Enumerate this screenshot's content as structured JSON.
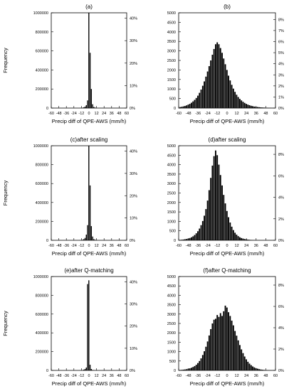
{
  "chart_data": [
    {
      "type": "bar",
      "title": "(a)",
      "xlabel": "Precip diff of QPE-AWS (mm/h)",
      "ylabel": "Frequency",
      "xlim": [
        -60,
        60
      ],
      "ylim": [
        0,
        1000000
      ],
      "xticks": [
        -60,
        -48,
        -36,
        -24,
        -12,
        0,
        12,
        24,
        36,
        48,
        60
      ],
      "yticks": [
        0,
        200000,
        400000,
        600000,
        800000,
        1000000
      ],
      "y2ticks": [
        "0%",
        "10%",
        "20%",
        "30%",
        "40%"
      ],
      "y2max": 0.424,
      "bin_width": 2,
      "x": [
        -14,
        -12,
        -10,
        -8,
        -6,
        -4,
        -2,
        0,
        2,
        4,
        6,
        8,
        10,
        12,
        14
      ],
      "values": [
        1000,
        2000,
        4000,
        8000,
        15000,
        30000,
        80000,
        1000000,
        580000,
        200000,
        40000,
        12000,
        5000,
        2000,
        1000
      ]
    },
    {
      "type": "bar",
      "title": "(b)",
      "xlabel": "Precip diff of QPE-AWS (mm/h)",
      "ylabel": "",
      "xlim": [
        -60,
        60
      ],
      "ylim": [
        0,
        5000
      ],
      "xticks": [
        -60,
        -48,
        -36,
        -24,
        -12,
        0,
        12,
        24,
        36,
        48,
        60
      ],
      "yticks": [
        0,
        500,
        1000,
        1500,
        2000,
        2500,
        3000,
        3500,
        4000,
        4500,
        5000
      ],
      "y2ticks": [
        "0%",
        "1%",
        "2%",
        "3%",
        "4%",
        "5%",
        "6%",
        "7%",
        "8%"
      ],
      "y2max": 0.086,
      "bin_width": 2,
      "x": [
        -58,
        -56,
        -54,
        -52,
        -50,
        -48,
        -46,
        -44,
        -42,
        -40,
        -38,
        -36,
        -34,
        -32,
        -30,
        -28,
        -26,
        -24,
        -22,
        -20,
        -18,
        -16,
        -14,
        -12,
        -10,
        -8,
        -6,
        -4,
        -2,
        0,
        2,
        4,
        6,
        8,
        10,
        12,
        14,
        16,
        18,
        20,
        22,
        24,
        26,
        28,
        30,
        32,
        34,
        36,
        38,
        40,
        42,
        44,
        46,
        48,
        50,
        52,
        54,
        56,
        58
      ],
      "values": [
        50,
        70,
        90,
        110,
        140,
        180,
        220,
        280,
        350,
        430,
        530,
        650,
        800,
        970,
        1170,
        1400,
        1650,
        1920,
        2200,
        2500,
        2800,
        3100,
        3350,
        3450,
        3350,
        3150,
        2900,
        2600,
        2300,
        2000,
        1700,
        1450,
        1220,
        1020,
        850,
        700,
        580,
        480,
        400,
        330,
        270,
        220,
        180,
        150,
        120,
        100,
        80,
        65,
        55,
        45,
        38,
        30,
        25,
        20,
        16,
        13,
        10,
        8,
        6
      ]
    },
    {
      "type": "bar",
      "title": "(c)after scaling",
      "xlabel": "Precip diff of QPE-AWS (mm/h)",
      "ylabel": "Frequency",
      "xlim": [
        -60,
        60
      ],
      "ylim": [
        0,
        1000000
      ],
      "xticks": [
        -60,
        -48,
        -36,
        -24,
        -12,
        0,
        12,
        24,
        36,
        48,
        60
      ],
      "yticks": [
        0,
        200000,
        400000,
        600000,
        800000,
        1000000
      ],
      "y2ticks": [
        "0%",
        "10%",
        "20%",
        "30%",
        "40%"
      ],
      "y2max": 0.424,
      "bin_width": 2,
      "x": [
        -14,
        -12,
        -10,
        -8,
        -6,
        -4,
        -2,
        0,
        2,
        4,
        6,
        8,
        10,
        12,
        14
      ],
      "values": [
        2000,
        3000,
        6000,
        12000,
        25000,
        60000,
        160000,
        1000000,
        580000,
        150000,
        40000,
        12000,
        5000,
        2000,
        1000
      ]
    },
    {
      "type": "bar",
      "title": "(d)after scaling",
      "xlabel": "Precip diff of QPE-AWS (mm/h)",
      "ylabel": "",
      "xlim": [
        -60,
        60
      ],
      "ylim": [
        0,
        5000
      ],
      "xticks": [
        -60,
        -48,
        -36,
        -24,
        -12,
        0,
        12,
        24,
        36,
        48,
        60
      ],
      "yticks": [
        0,
        500,
        1000,
        1500,
        2000,
        2500,
        3000,
        3500,
        4000,
        4500,
        5000
      ],
      "y2ticks": [
        "0%",
        "2%",
        "4%",
        "6%",
        "8%"
      ],
      "y2max": 0.088,
      "bin_width": 2,
      "x": [
        -58,
        -56,
        -54,
        -52,
        -50,
        -48,
        -46,
        -44,
        -42,
        -40,
        -38,
        -36,
        -34,
        -32,
        -30,
        -28,
        -26,
        -24,
        -22,
        -20,
        -18,
        -16,
        -14,
        -12,
        -10,
        -8,
        -6,
        -4,
        -2,
        0,
        2,
        4,
        6,
        8,
        10,
        12,
        14,
        16,
        18,
        20,
        22,
        24,
        26,
        28,
        30,
        32,
        34,
        36,
        38,
        40,
        42,
        44,
        46,
        48,
        50,
        52,
        54,
        56,
        58
      ],
      "values": [
        20,
        30,
        40,
        55,
        70,
        90,
        120,
        160,
        210,
        280,
        370,
        480,
        620,
        800,
        1020,
        1300,
        1650,
        2100,
        2650,
        3300,
        3950,
        4450,
        4750,
        4500,
        4000,
        3450,
        2900,
        2400,
        1950,
        1550,
        1220,
        940,
        720,
        540,
        400,
        300,
        220,
        160,
        120,
        90,
        65,
        48,
        36,
        27,
        20,
        15,
        11,
        8,
        6,
        5,
        4,
        3,
        2,
        2,
        1,
        1,
        1,
        1,
        1
      ]
    },
    {
      "type": "bar",
      "title": "(e)after Q-matching",
      "xlabel": "Precip diff of QPE-AWS (mm/h)",
      "ylabel": "Frequency",
      "xlim": [
        -60,
        60
      ],
      "ylim": [
        0,
        1000000
      ],
      "xticks": [
        -60,
        -48,
        -36,
        -24,
        -12,
        0,
        12,
        24,
        36,
        48,
        60
      ],
      "yticks": [
        0,
        200000,
        400000,
        600000,
        800000,
        1000000
      ],
      "y2ticks": [
        "0%",
        "10%",
        "20%",
        "30%",
        "40%"
      ],
      "y2max": 0.424,
      "bin_width": 2,
      "x": [
        -14,
        -12,
        -10,
        -8,
        -6,
        -4,
        -2,
        0,
        2,
        4,
        6,
        8,
        10,
        12,
        14
      ],
      "values": [
        1000,
        2000,
        4000,
        8000,
        15000,
        30000,
        920000,
        960000,
        60000,
        15000,
        5000,
        2000,
        1000,
        500,
        300
      ]
    },
    {
      "type": "bar",
      "title": "(f)after Q-matching",
      "xlabel": "Precip diff of QPE-AWS (mm/h)",
      "ylabel": "",
      "xlim": [
        -60,
        60
      ],
      "ylim": [
        0,
        5000
      ],
      "xticks": [
        -60,
        -48,
        -36,
        -24,
        -12,
        0,
        12,
        24,
        36,
        48,
        60
      ],
      "yticks": [
        0,
        500,
        1000,
        1500,
        2000,
        2500,
        3000,
        3500,
        4000,
        4500,
        5000
      ],
      "y2ticks": [
        "0%",
        "2%",
        "4%",
        "6%",
        "8%"
      ],
      "y2max": 0.088,
      "bin_width": 2,
      "x": [
        -58,
        -56,
        -54,
        -52,
        -50,
        -48,
        -46,
        -44,
        -42,
        -40,
        -38,
        -36,
        -34,
        -32,
        -30,
        -28,
        -26,
        -24,
        -22,
        -20,
        -18,
        -16,
        -14,
        -12,
        -10,
        -8,
        -6,
        -4,
        -2,
        0,
        2,
        4,
        6,
        8,
        10,
        12,
        14,
        16,
        18,
        20,
        22,
        24,
        26,
        28,
        30,
        32,
        34,
        36,
        38,
        40,
        42,
        44,
        46,
        48,
        50,
        52,
        54,
        56,
        58
      ],
      "values": [
        20,
        30,
        40,
        50,
        65,
        85,
        110,
        140,
        180,
        230,
        300,
        390,
        500,
        640,
        820,
        1020,
        1260,
        1540,
        1860,
        2200,
        2500,
        2700,
        2750,
        2950,
        2850,
        3050,
        2900,
        3150,
        3450,
        3350,
        3100,
        2900,
        2650,
        2400,
        2100,
        1850,
        1600,
        1350,
        1120,
        920,
        740,
        590,
        460,
        360,
        280,
        210,
        160,
        120,
        90,
        65,
        48,
        35,
        25,
        18,
        13,
        10,
        7,
        5,
        4
      ]
    }
  ]
}
